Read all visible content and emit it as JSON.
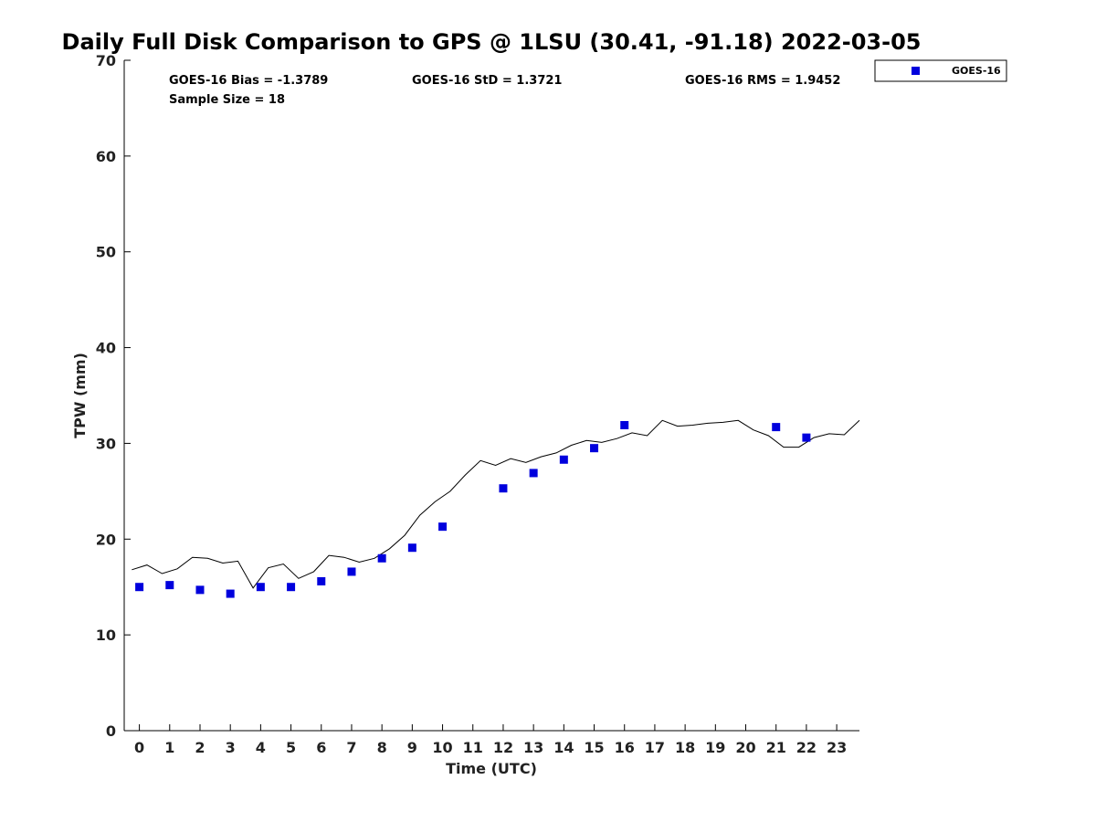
{
  "chart_data": {
    "type": "scatter",
    "title": "Daily Full Disk Comparison to GPS @ 1LSU (30.41, -91.18) 2022-03-05",
    "xlabel": "Time (UTC)",
    "ylabel": "TPW (mm)",
    "xlim": [
      -0.5,
      23.75
    ],
    "ylim": [
      0,
      70
    ],
    "xticks": [
      0,
      1,
      2,
      3,
      4,
      5,
      6,
      7,
      8,
      9,
      10,
      11,
      12,
      13,
      14,
      15,
      16,
      17,
      18,
      19,
      20,
      21,
      22,
      23
    ],
    "yticks": [
      0,
      10,
      20,
      30,
      40,
      50,
      60,
      70
    ],
    "grid": false,
    "legend_position": "top-right (outside plot)",
    "stats": {
      "bias": "GOES-16 Bias = -1.3789",
      "std": "GOES-16 StD = 1.3721",
      "rms": "GOES-16 RMS = 1.9452",
      "sample": "Sample Size = 18"
    },
    "series": [
      {
        "name": "GOES-16",
        "kind": "scatter",
        "marker": "square",
        "color": "#0000dd",
        "points": [
          [
            0,
            15.0
          ],
          [
            1,
            15.2
          ],
          [
            2,
            14.7
          ],
          [
            3,
            14.3
          ],
          [
            4,
            15.0
          ],
          [
            5,
            15.0
          ],
          [
            6,
            15.6
          ],
          [
            7,
            16.6
          ],
          [
            8,
            18.0
          ],
          [
            9,
            19.1
          ],
          [
            10,
            21.3
          ],
          [
            12,
            25.3
          ],
          [
            13,
            26.9
          ],
          [
            14,
            28.3
          ],
          [
            15,
            29.5
          ],
          [
            16,
            31.9
          ],
          [
            21,
            31.7
          ],
          [
            22,
            30.6
          ]
        ]
      },
      {
        "kind": "line",
        "color": "#000000",
        "points": [
          [
            -0.25,
            16.8
          ],
          [
            0.25,
            17.3
          ],
          [
            0.75,
            16.4
          ],
          [
            1.25,
            16.9
          ],
          [
            1.75,
            18.1
          ],
          [
            2.25,
            18.0
          ],
          [
            2.75,
            17.5
          ],
          [
            3.25,
            17.7
          ],
          [
            3.75,
            14.9
          ],
          [
            4.25,
            17.0
          ],
          [
            4.75,
            17.4
          ],
          [
            5.25,
            15.9
          ],
          [
            5.75,
            16.6
          ],
          [
            6.25,
            18.3
          ],
          [
            6.75,
            18.1
          ],
          [
            7.25,
            17.6
          ],
          [
            7.75,
            18.0
          ],
          [
            8.25,
            19.0
          ],
          [
            8.75,
            20.4
          ],
          [
            9.25,
            22.5
          ],
          [
            9.75,
            23.9
          ],
          [
            10.25,
            25.0
          ],
          [
            10.75,
            26.7
          ],
          [
            11.25,
            28.2
          ],
          [
            11.75,
            27.7
          ],
          [
            12.25,
            28.4
          ],
          [
            12.75,
            28.0
          ],
          [
            13.25,
            28.6
          ],
          [
            13.75,
            29.0
          ],
          [
            14.25,
            29.8
          ],
          [
            14.75,
            30.3
          ],
          [
            15.25,
            30.1
          ],
          [
            15.75,
            30.5
          ],
          [
            16.25,
            31.1
          ],
          [
            16.75,
            30.8
          ],
          [
            17.25,
            32.4
          ],
          [
            17.75,
            31.8
          ],
          [
            18.25,
            31.9
          ],
          [
            18.75,
            32.1
          ],
          [
            19.25,
            32.2
          ],
          [
            19.75,
            32.4
          ],
          [
            20.25,
            31.4
          ],
          [
            20.75,
            30.8
          ],
          [
            21.25,
            29.6
          ],
          [
            21.75,
            29.6
          ],
          [
            22.25,
            30.6
          ],
          [
            22.75,
            31.0
          ],
          [
            23.25,
            30.9
          ],
          [
            23.75,
            32.4
          ]
        ]
      }
    ]
  }
}
